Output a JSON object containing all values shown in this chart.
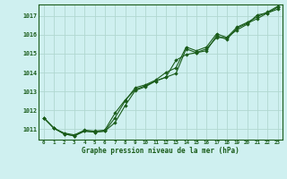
{
  "title": "Graphe pression niveau de la mer (hPa)",
  "bg_color": "#cff0f0",
  "grid_color": "#b0d8d0",
  "line_color": "#1a5c1a",
  "marker_color": "#1a5c1a",
  "xlim": [
    -0.5,
    23.5
  ],
  "ylim": [
    1010.45,
    1017.6
  ],
  "yticks": [
    1011,
    1012,
    1013,
    1014,
    1015,
    1016,
    1017
  ],
  "xticks": [
    0,
    1,
    2,
    3,
    4,
    5,
    6,
    7,
    8,
    9,
    10,
    11,
    12,
    13,
    14,
    15,
    16,
    17,
    18,
    19,
    20,
    21,
    22,
    23
  ],
  "line1_x": [
    0,
    1,
    2,
    3,
    4,
    5,
    6,
    7,
    8,
    9,
    10,
    11,
    12,
    13,
    14,
    15,
    16,
    17,
    18,
    19,
    20,
    21,
    22,
    23
  ],
  "line1_y": [
    1011.6,
    1011.05,
    1010.75,
    1010.65,
    1010.9,
    1010.85,
    1010.9,
    1011.6,
    1012.5,
    1013.2,
    1013.35,
    1013.6,
    1014.0,
    1014.25,
    1015.35,
    1015.15,
    1015.35,
    1016.05,
    1015.85,
    1016.4,
    1016.65,
    1016.95,
    1017.2,
    1017.5
  ],
  "line2_x": [
    0,
    1,
    2,
    3,
    4,
    5,
    6,
    7,
    8,
    9,
    10,
    11,
    12,
    13,
    14,
    15,
    16,
    17,
    18,
    19,
    20,
    21,
    22,
    23
  ],
  "line2_y": [
    1011.6,
    1011.05,
    1010.75,
    1010.65,
    1010.9,
    1010.85,
    1010.9,
    1011.35,
    1012.25,
    1013.05,
    1013.25,
    1013.55,
    1013.75,
    1013.95,
    1015.25,
    1015.05,
    1015.15,
    1015.95,
    1015.75,
    1016.35,
    1016.6,
    1016.85,
    1017.15,
    1017.45
  ],
  "line3_x": [
    0,
    1,
    2,
    3,
    4,
    5,
    6,
    7,
    8,
    9,
    10,
    11,
    12,
    13,
    14,
    15,
    16,
    17,
    18,
    19,
    20,
    21,
    22,
    23
  ],
  "line3_y": [
    1011.6,
    1011.05,
    1010.8,
    1010.7,
    1010.95,
    1010.9,
    1010.95,
    1011.85,
    1012.55,
    1013.1,
    1013.3,
    1013.55,
    1013.75,
    1014.65,
    1014.95,
    1015.05,
    1015.25,
    1015.85,
    1015.85,
    1016.25,
    1016.55,
    1017.05,
    1017.15,
    1017.35
  ]
}
